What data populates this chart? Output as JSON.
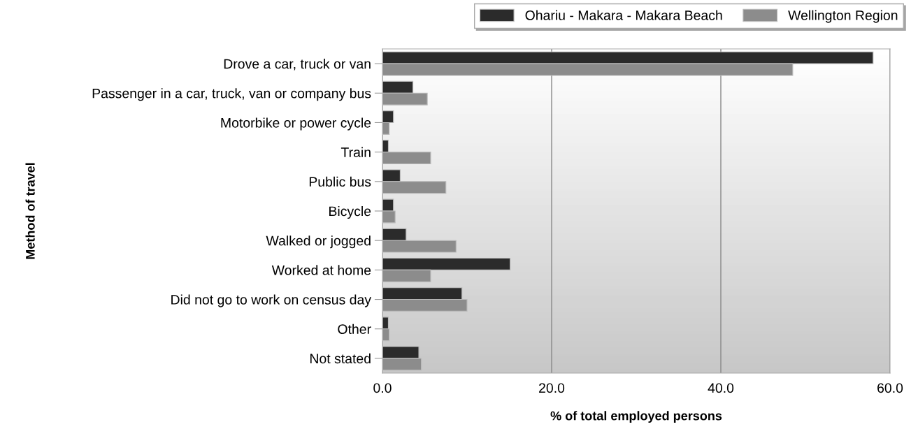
{
  "chart_data": {
    "type": "bar",
    "orientation": "horizontal",
    "xlabel": "% of total employed persons",
    "ylabel": "Method of travel",
    "categories": [
      "Drove a car, truck or van",
      "Passenger in a car, truck, van or company bus",
      "Motorbike or power cycle",
      "Train",
      "Public bus",
      "Bicycle",
      "Walked or jogged",
      "Worked at home",
      "Did not go to work on census day",
      "Other",
      "Not stated"
    ],
    "series": [
      {
        "name": "Ohariu - Makara - Makara Beach",
        "color": "#2b2b2b",
        "values": [
          58.0,
          3.6,
          1.3,
          0.7,
          2.1,
          1.3,
          2.8,
          15.1,
          9.4,
          0.7,
          4.3
        ]
      },
      {
        "name": "Wellington Region",
        "color": "#8c8c8c",
        "values": [
          48.5,
          5.3,
          0.8,
          5.7,
          7.5,
          1.5,
          8.7,
          5.7,
          10.0,
          0.8,
          4.6
        ]
      }
    ],
    "xlim": [
      0,
      60
    ],
    "xticks": [
      {
        "value": 0,
        "label": "0.0"
      },
      {
        "value": 20,
        "label": "20.0"
      },
      {
        "value": 40,
        "label": "40.0"
      },
      {
        "value": 60,
        "label": "60.0"
      }
    ],
    "grid": "x",
    "legend": "top right"
  }
}
